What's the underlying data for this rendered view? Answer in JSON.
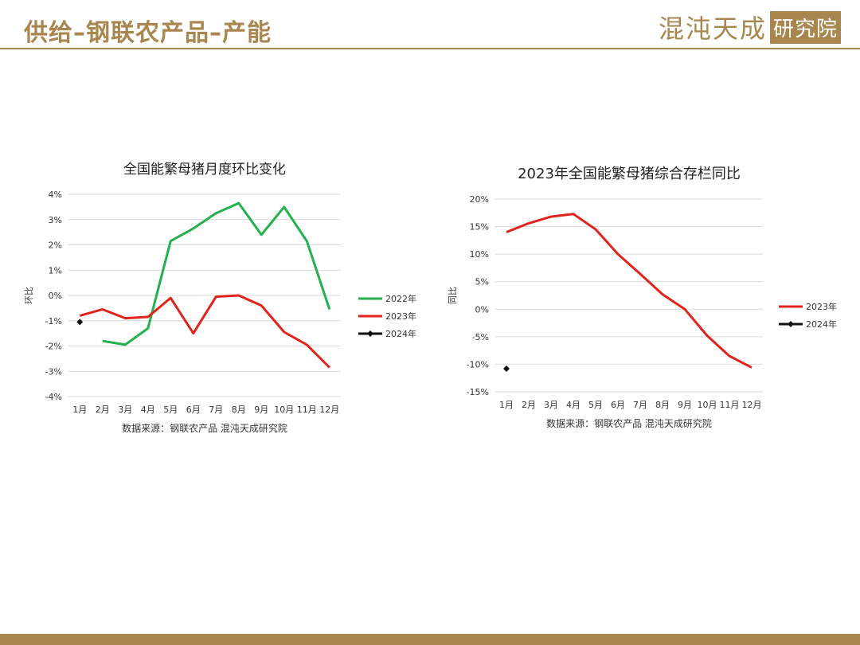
{
  "header": {
    "title": "供给–钢联农产品–产能",
    "logo_text": "混沌天成",
    "logo_box": "研究院"
  },
  "colors": {
    "accent": "#a8864e",
    "green": "#22b14c",
    "red": "#e0231b",
    "black": "#111111",
    "grid": "#d9d9d9"
  },
  "chart_data": [
    {
      "type": "line",
      "title": "全国能繁母猪月度环比变化",
      "ylabel": "环比",
      "source": "数据来源：钢联农产品 混沌天成研究院",
      "categories": [
        "1月",
        "2月",
        "3月",
        "4月",
        "5月",
        "6月",
        "7月",
        "8月",
        "9月",
        "10月",
        "11月",
        "12月"
      ],
      "ylim": [
        -4,
        4
      ],
      "yticks": [
        4,
        3,
        2,
        1,
        0,
        -1,
        -2,
        -3,
        -4
      ],
      "ytick_labels": [
        "4%",
        "3%",
        "2%",
        "1%",
        "0%",
        "-1%",
        "-2%",
        "-3%",
        "-4%"
      ],
      "grid": true,
      "legend_position": "right",
      "series": [
        {
          "name": "2022年",
          "color": "#22b14c",
          "marker": false,
          "values": [
            null,
            -1.8,
            -1.95,
            -1.3,
            2.15,
            2.65,
            3.25,
            3.65,
            2.4,
            3.5,
            2.15,
            -0.55
          ]
        },
        {
          "name": "2023年",
          "color": "#e0231b",
          "marker": false,
          "values": [
            -0.8,
            -0.55,
            -0.9,
            -0.85,
            -0.1,
            -1.5,
            -0.05,
            0.0,
            -0.4,
            -1.45,
            -1.95,
            -2.85
          ]
        },
        {
          "name": "2024年",
          "color": "#111111",
          "marker": true,
          "values": [
            -1.05,
            null,
            null,
            null,
            null,
            null,
            null,
            null,
            null,
            null,
            null,
            null
          ]
        }
      ]
    },
    {
      "type": "line",
      "title": "2023年全国能繁母猪综合存栏同比",
      "ylabel": "同比",
      "source": "数据来源：钢联农产品 混沌天成研究院",
      "categories": [
        "1月",
        "2月",
        "3月",
        "4月",
        "5月",
        "6月",
        "7月",
        "8月",
        "9月",
        "10月",
        "11月",
        "12月"
      ],
      "ylim": [
        -15,
        20
      ],
      "yticks": [
        20,
        15,
        10,
        5,
        0,
        -5,
        -10,
        -15
      ],
      "ytick_labels": [
        "20%",
        "15%",
        "10%",
        "5%",
        "0%",
        "-5%",
        "-10%",
        "-15%"
      ],
      "grid": true,
      "legend_position": "right",
      "series": [
        {
          "name": "2023年",
          "color": "#e0231b",
          "marker": false,
          "values": [
            14.0,
            15.6,
            16.8,
            17.3,
            14.5,
            10.0,
            6.4,
            2.7,
            0.0,
            -4.8,
            -8.5,
            -10.6
          ]
        },
        {
          "name": "2024年",
          "color": "#111111",
          "marker": true,
          "values": [
            -10.8,
            null,
            null,
            null,
            null,
            null,
            null,
            null,
            null,
            null,
            null,
            null
          ]
        }
      ]
    }
  ]
}
